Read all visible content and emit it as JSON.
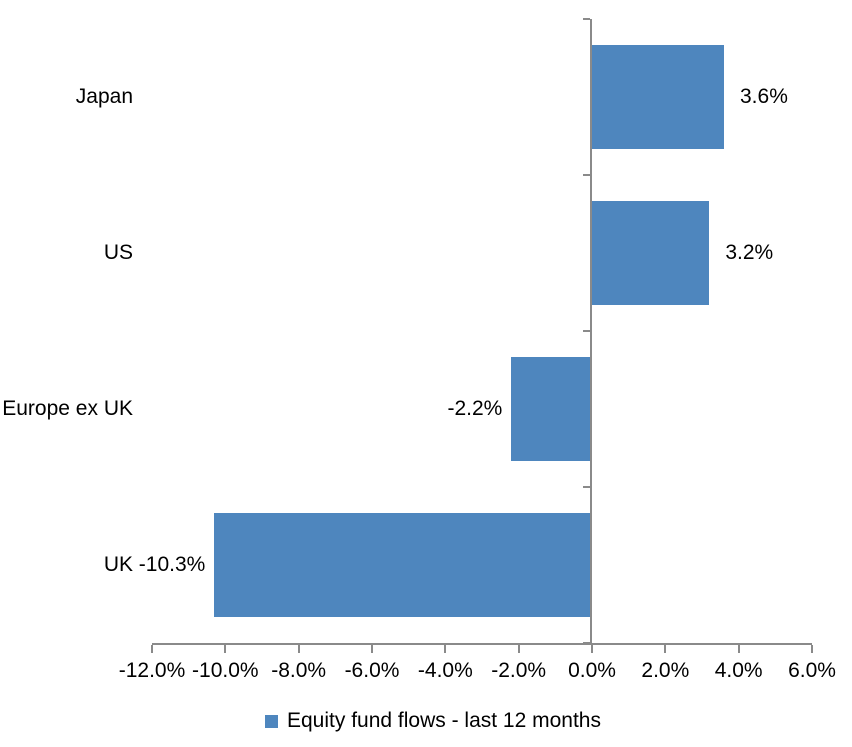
{
  "chart_data": {
    "type": "bar",
    "orientation": "horizontal",
    "title": "",
    "categories": [
      "Japan",
      "US",
      "Europe ex UK",
      "UK"
    ],
    "values": [
      3.6,
      3.2,
      -2.2,
      -10.3
    ],
    "data_labels": [
      "3.6%",
      "3.2%",
      "-2.2%",
      "-10.3%"
    ],
    "xlim": [
      -12,
      6
    ],
    "x_tick_values": [
      -12,
      -10,
      -8,
      -6,
      -4,
      -2,
      0,
      2,
      4,
      6
    ],
    "x_tick_labels": [
      "-12.0%",
      "-10.0%",
      "-8.0%",
      "-6.0%",
      "-4.0%",
      "-2.0%",
      "0.0%",
      "2.0%",
      "4.0%",
      "6.0%"
    ],
    "grid": false,
    "legend_position": "bottom",
    "legend": "Equity fund flows - last 12 months",
    "bar_color": "#4E86BE",
    "axis_color": "#8A8A8A",
    "text_color": "#000000"
  }
}
